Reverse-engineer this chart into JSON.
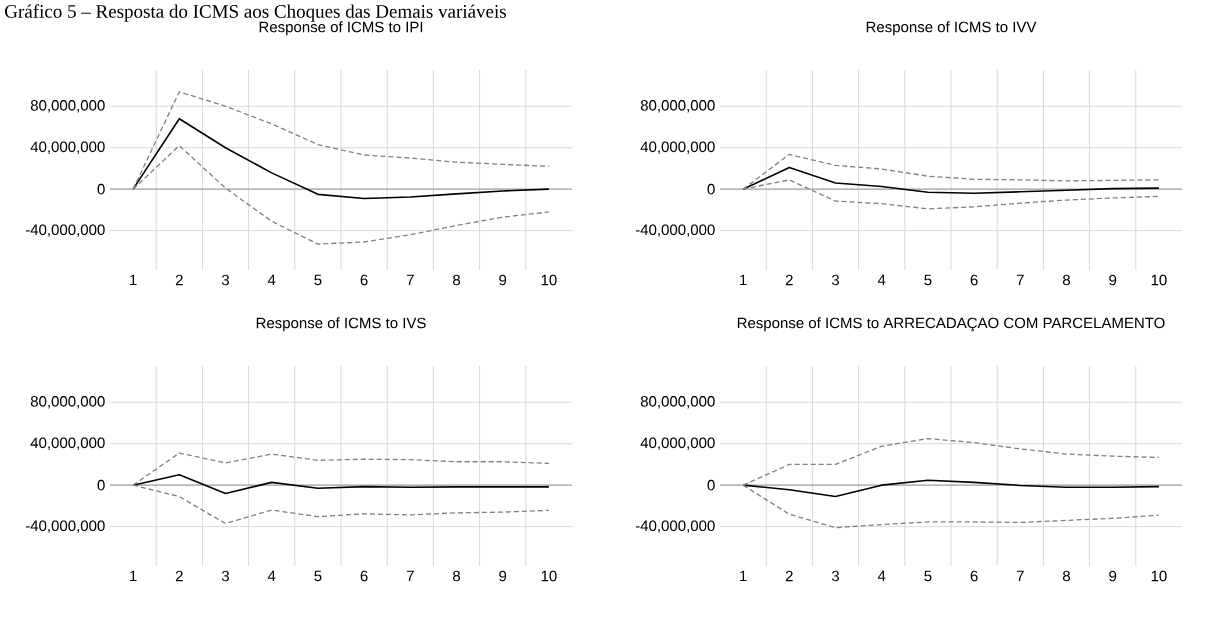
{
  "chart_data": [
    {
      "type": "line",
      "title": "Response of ICMS to IPI",
      "annotations": [
        "Gráfico 5 – Resposta do ICMS aos Choques das Demais variáveis"
      ],
      "categories": [
        "1",
        "2",
        "3",
        "4",
        "5",
        "6",
        "7",
        "8",
        "9",
        "10"
      ],
      "series": [
        {
          "color": "#000000",
          "line_style": "solid",
          "values": [
            0,
            68000000,
            40000000,
            15700000,
            -5000000,
            -9000000,
            -7500000,
            -4500000,
            -1700000,
            0
          ]
        },
        {
          "color": "#808080",
          "line_style": "dashed",
          "values": [
            0,
            94000000,
            80000000,
            63000000,
            43000000,
            33000000,
            30000000,
            26000000,
            24000000,
            22000000
          ]
        },
        {
          "color": "#808080",
          "line_style": "dashed",
          "values": [
            0,
            42000000,
            1000000,
            -31000000,
            -53000000,
            -51000000,
            -44000000,
            -35000000,
            -27000000,
            -22000000
          ]
        }
      ],
      "ylim": [
        -78000000,
        115000000
      ],
      "yticks": [
        {
          "value": -40000000,
          "label": "-40,000,000"
        },
        0,
        {
          "value": 40000000,
          "label": "40,000,000"
        },
        {
          "value": 80000000,
          "label": "80,000,000"
        }
      ],
      "grid": true
    },
    {
      "type": "line",
      "title": "Response of ICMS to IVV",
      "categories": [
        "1",
        "2",
        "3",
        "4",
        "5",
        "6",
        "7",
        "8",
        "9",
        "10"
      ],
      "series": [
        {
          "color": "#000000",
          "line_style": "solid",
          "values": [
            0,
            21000000,
            6000000,
            2500000,
            -3000000,
            -4000000,
            -2500000,
            -1000000,
            500000,
            1000000
          ]
        },
        {
          "color": "#808080",
          "line_style": "dashed",
          "values": [
            0,
            33500000,
            23000000,
            19500000,
            12500000,
            9500000,
            9000000,
            8000000,
            8500000,
            9000000
          ]
        },
        {
          "color": "#808080",
          "line_style": "dashed",
          "values": [
            0,
            9000000,
            -11500000,
            -14000000,
            -19000000,
            -17000000,
            -13500000,
            -10500000,
            -8500000,
            -7000000
          ]
        }
      ],
      "ylim": [
        -78000000,
        115000000
      ],
      "yticks": [
        {
          "value": -40000000,
          "label": "-40,000,000"
        },
        0,
        {
          "value": 40000000,
          "label": "40,000,000"
        },
        {
          "value": 80000000,
          "label": "80,000,000"
        }
      ],
      "grid": true
    },
    {
      "type": "line",
      "title": "Response of ICMS to IVS",
      "categories": [
        "1",
        "2",
        "3",
        "4",
        "5",
        "6",
        "7",
        "8",
        "9",
        "10"
      ],
      "series": [
        {
          "color": "#000000",
          "line_style": "solid",
          "values": [
            0,
            10000000,
            -8000000,
            2700000,
            -3000000,
            -1400000,
            -2000000,
            -1700000,
            -1700000,
            -1700000
          ]
        },
        {
          "color": "#808080",
          "line_style": "dashed",
          "values": [
            0,
            31000000,
            21500000,
            30000000,
            24000000,
            25000000,
            24600000,
            22600000,
            22600000,
            21000000
          ]
        },
        {
          "color": "#808080",
          "line_style": "dashed",
          "values": [
            0,
            -11000000,
            -37000000,
            -24000000,
            -30400000,
            -27700000,
            -28700000,
            -26700000,
            -26000000,
            -24300000
          ]
        }
      ],
      "ylim": [
        -78000000,
        115000000
      ],
      "yticks": [
        {
          "value": -40000000,
          "label": "-40,000,000"
        },
        0,
        {
          "value": 40000000,
          "label": "40,000,000"
        },
        {
          "value": 80000000,
          "label": "80,000,000"
        }
      ],
      "grid": true
    },
    {
      "type": "line",
      "title": "Response of ICMS to ARRECADAÇAO COM PARCELAMENTO",
      "categories": [
        "1",
        "2",
        "3",
        "4",
        "5",
        "6",
        "7",
        "8",
        "9",
        "10"
      ],
      "series": [
        {
          "color": "#000000",
          "line_style": "solid",
          "values": [
            0,
            -4400000,
            -11000000,
            0,
            4800000,
            2700000,
            -300000,
            -2000000,
            -2000000,
            -1400000
          ]
        },
        {
          "color": "#808080",
          "line_style": "dashed",
          "values": [
            0,
            20000000,
            20000000,
            37600000,
            45000000,
            41000000,
            35000000,
            30000000,
            28000000,
            26700000
          ]
        },
        {
          "color": "#808080",
          "line_style": "dashed",
          "values": [
            0,
            -28000000,
            -41000000,
            -38000000,
            -35500000,
            -35500000,
            -36000000,
            -34000000,
            -32000000,
            -29000000
          ]
        }
      ],
      "ylim": [
        -78000000,
        115000000
      ],
      "yticks": [
        {
          "value": -40000000,
          "label": "-40,000,000"
        },
        0,
        {
          "value": 40000000,
          "label": "40,000,000"
        },
        {
          "value": 80000000,
          "label": "80,000,000"
        }
      ],
      "grid": true
    }
  ]
}
